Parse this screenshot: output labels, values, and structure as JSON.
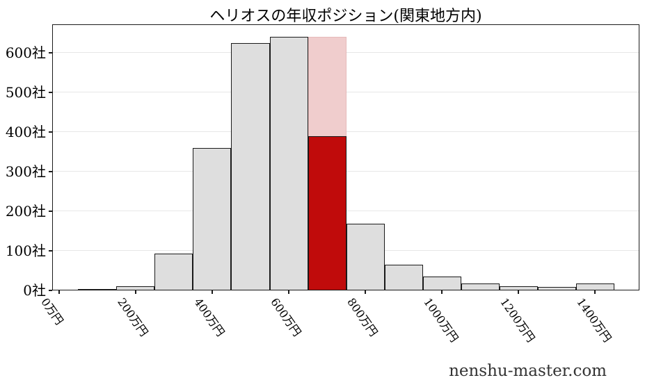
{
  "page": {
    "watermark": "nenshu-master.com"
  },
  "chart_data": {
    "type": "bar",
    "subtype": "histogram",
    "title": "ヘリオスの年収ポジション(関東地方内)",
    "xlabel": "",
    "ylabel": "",
    "x_unit": "万円",
    "y_unit": "社",
    "grid": true,
    "legend": "none",
    "axes": {
      "x_min": -18,
      "x_max": 1516,
      "y_min": 0,
      "y_max": 672
    },
    "x_axis": {
      "tick_values": [
        0,
        200,
        400,
        600,
        800,
        1000,
        1200,
        1400
      ],
      "tick_labels": [
        "0万円",
        "200万円",
        "400万円",
        "600万円",
        "800万円",
        "1000万円",
        "1200万円",
        "1400万円"
      ]
    },
    "y_axis": {
      "tick_values": [
        0,
        100,
        200,
        300,
        400,
        500,
        600
      ],
      "tick_labels": [
        "0社",
        "100社",
        "200社",
        "300社",
        "400社",
        "500社",
        "600社"
      ]
    },
    "bins": {
      "edges": [
        50,
        150,
        250,
        350,
        450,
        550,
        650,
        750,
        850,
        950,
        1050,
        1150,
        1250,
        1350,
        1450
      ],
      "centers": [
        100,
        200,
        300,
        400,
        500,
        600,
        700,
        800,
        900,
        1000,
        1100,
        1200,
        1300,
        1400
      ],
      "counts": [
        2,
        11,
        93,
        360,
        625,
        640,
        640,
        168,
        65,
        35,
        17,
        11,
        9,
        18
      ]
    },
    "highlight": {
      "bin_index": 6,
      "bin_center": 700,
      "full_count": 640,
      "red_count": 390
    },
    "colors": {
      "bar_fill": "#dedede",
      "bar_edge": "#1a1a1a",
      "highlight_red": "#c00b0b",
      "highlight_pink": "#f0cdcd",
      "highlight_pink_edge": "#e5baba",
      "grid": "#e7e7e7",
      "axis": "#1a1a1a",
      "title": "#000000",
      "watermark": "#333333"
    }
  }
}
